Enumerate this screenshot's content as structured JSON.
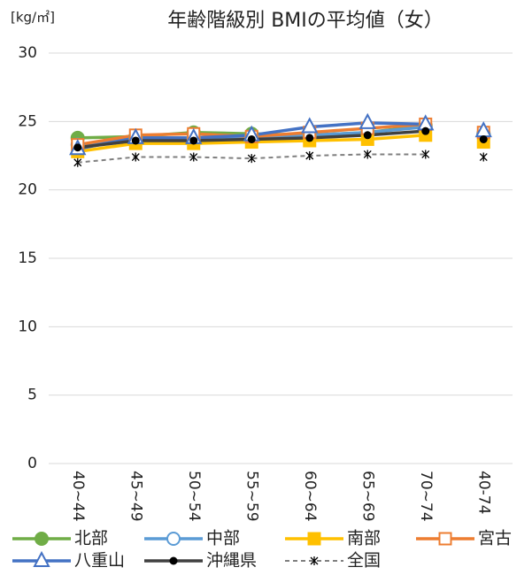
{
  "chart_data": {
    "type": "line",
    "title": "年齢階級別 BMIの平均値（女）",
    "unit_label": "[kg/㎡]",
    "categories": [
      "40~44",
      "45~49",
      "50~54",
      "55~59",
      "60~64",
      "65~69",
      "70~74",
      "40-74"
    ],
    "series": [
      {
        "name": "北部",
        "color": "#70ad47",
        "marker": "circle",
        "marker_fill": "#70ad47",
        "values": [
          23.8,
          23.9,
          24.2,
          24.1,
          24.0,
          24.2,
          24.7,
          24.1
        ]
      },
      {
        "name": "中部",
        "color": "#5b9bd5",
        "marker": "circle",
        "marker_fill": "#ffffff",
        "values": [
          23.3,
          23.8,
          23.8,
          23.9,
          24.0,
          24.2,
          24.6,
          24.1
        ]
      },
      {
        "name": "南部",
        "color": "#ffc000",
        "marker": "square",
        "marker_fill": "#ffc000",
        "values": [
          22.8,
          23.4,
          23.4,
          23.5,
          23.6,
          23.7,
          24.0,
          23.5
        ]
      },
      {
        "name": "宮古",
        "color": "#ed7d31",
        "marker": "square",
        "marker_fill": "#ffffff",
        "values": [
          23.3,
          24.0,
          24.1,
          23.9,
          24.2,
          24.5,
          24.8,
          24.2
        ]
      },
      {
        "name": "八重山",
        "color": "#4472c4",
        "marker": "triangle",
        "marker_fill": "#ffffff",
        "values": [
          23.0,
          23.8,
          23.8,
          24.0,
          24.6,
          24.9,
          24.8,
          24.3
        ]
      },
      {
        "name": "沖縄県",
        "color": "#404040",
        "marker": "dot",
        "marker_fill": "#000000",
        "values": [
          23.1,
          23.6,
          23.6,
          23.7,
          23.8,
          24.0,
          24.3,
          23.7
        ]
      },
      {
        "name": "全国",
        "color": "#7f7f7f",
        "marker": "star",
        "marker_fill": "#000000",
        "dashed": true,
        "values": [
          22.0,
          22.4,
          22.4,
          22.3,
          22.5,
          22.6,
          22.6,
          22.4
        ]
      }
    ],
    "ylim": [
      0,
      30
    ],
    "yticks": [
      0,
      5,
      10,
      15,
      20,
      25,
      30
    ],
    "grid": true
  }
}
